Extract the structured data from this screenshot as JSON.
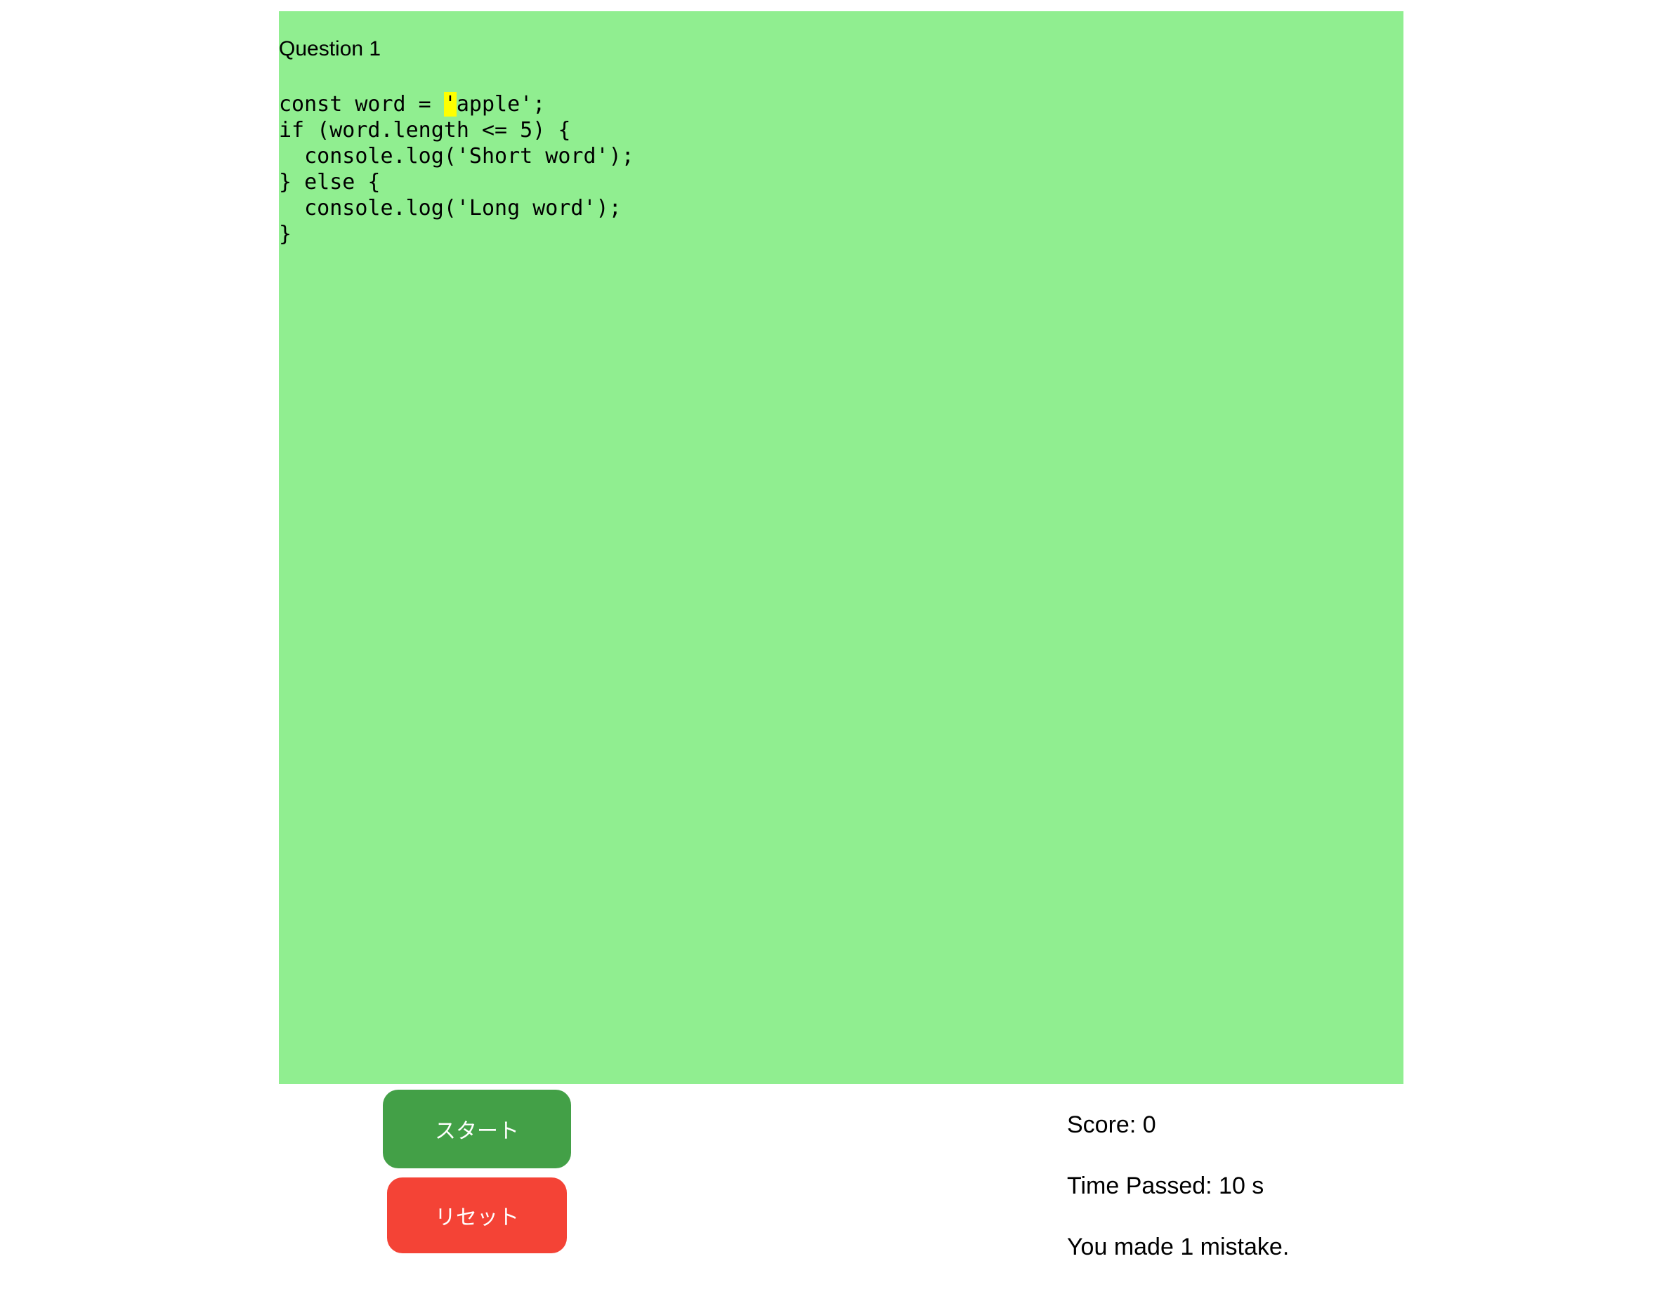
{
  "question_panel": {
    "background_color": "#90ee90",
    "title": "Question 1",
    "code_before_cursor": "const word = ",
    "cursor_char": "'",
    "code_after_cursor": "apple';\nif (word.length <= 5) {\n  console.log('Short word');\n} else {\n  console.log('Long word');\n}",
    "highlight_color": "#ffff00"
  },
  "controls": {
    "start_label": "スタート",
    "start_color": "#43a047",
    "reset_label": "リセット",
    "reset_color": "#f44336"
  },
  "stats": {
    "score": "Score: 0",
    "time_passed": "Time Passed: 10 s",
    "mistakes": "You made 1 mistake."
  }
}
